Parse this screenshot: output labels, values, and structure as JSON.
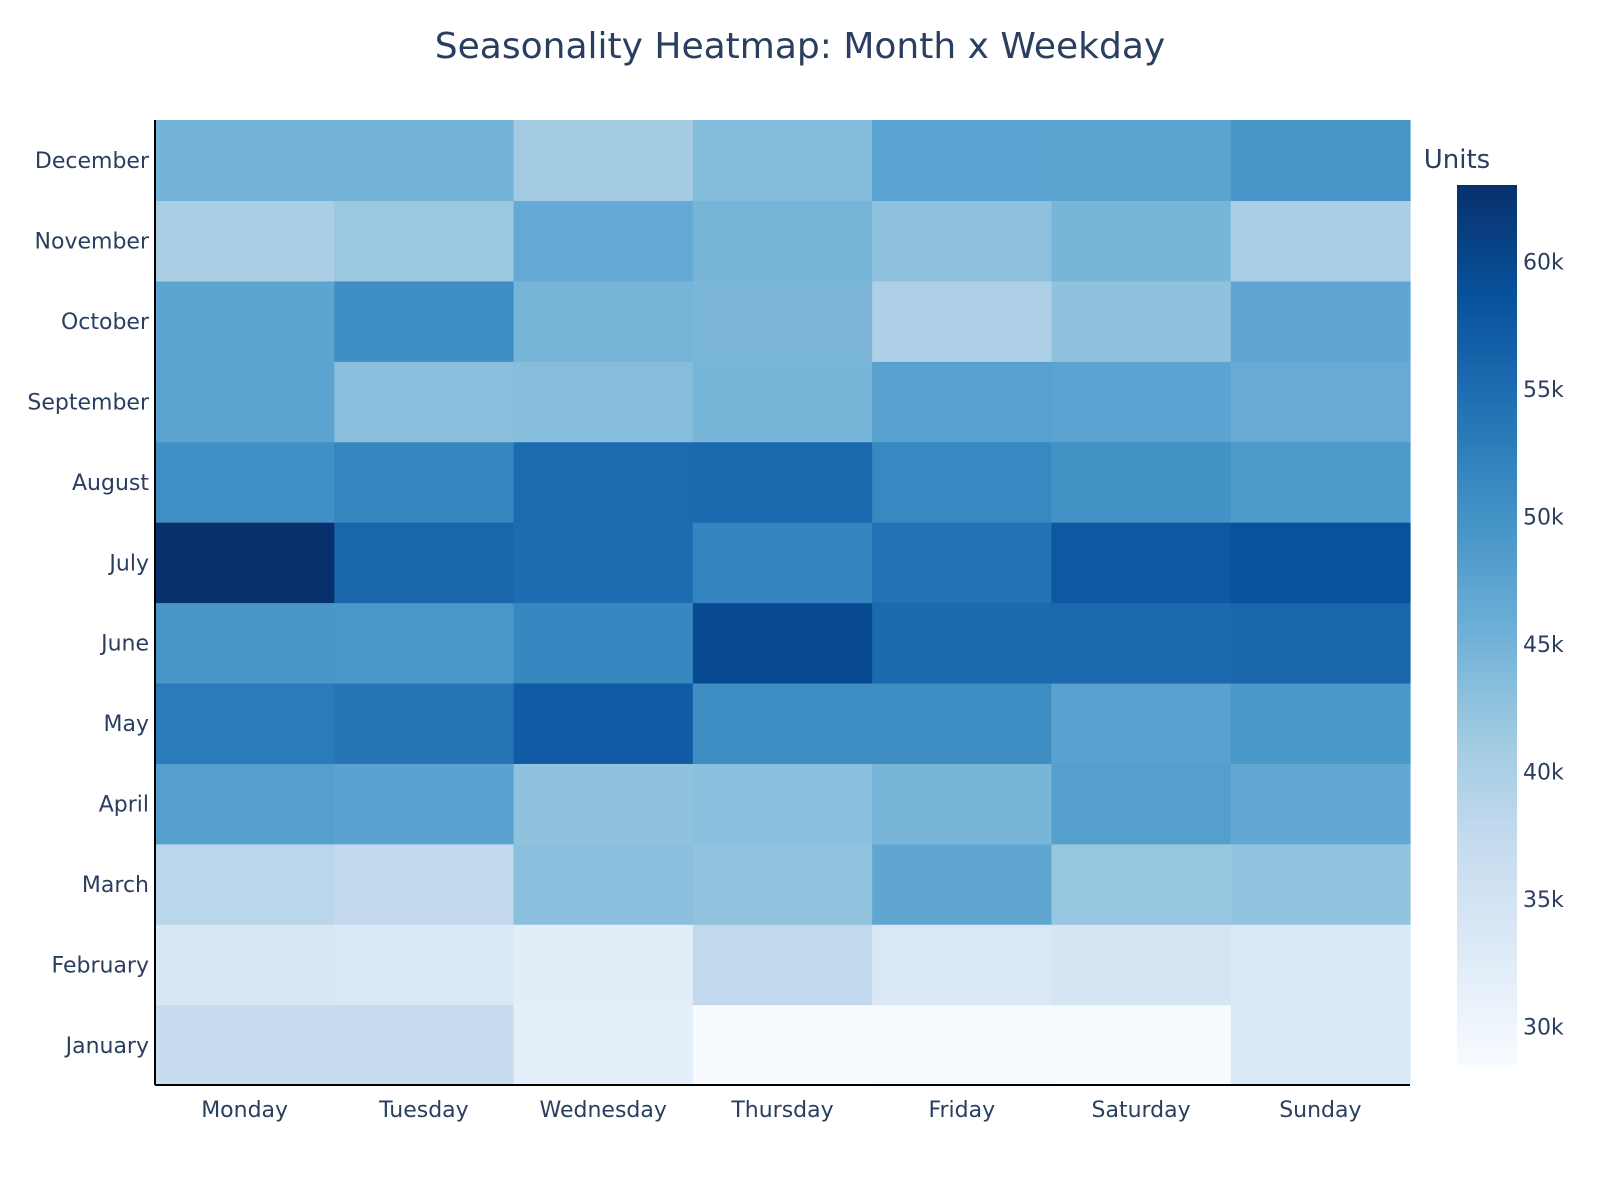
{
  "chart_data": {
    "type": "heatmap",
    "title": "Seasonality Heatmap: Month x Weekday",
    "x_categories": [
      "Monday",
      "Tuesday",
      "Wednesday",
      "Thursday",
      "Friday",
      "Saturday",
      "Sunday"
    ],
    "y_categories": [
      "January",
      "February",
      "March",
      "April",
      "May",
      "June",
      "July",
      "August",
      "September",
      "October",
      "November",
      "December"
    ],
    "values": [
      [
        36800,
        36800,
        31800,
        28500,
        28900,
        28600,
        33300
      ],
      [
        33800,
        33500,
        32200,
        37600,
        33600,
        34300,
        33300
      ],
      [
        38400,
        37500,
        43100,
        42500,
        47000,
        42000,
        42400
      ],
      [
        48100,
        47500,
        42600,
        43100,
        44600,
        48100,
        46700
      ],
      [
        53100,
        53900,
        57300,
        50600,
        50700,
        47600,
        49200
      ],
      [
        49300,
        49200,
        51500,
        59500,
        55400,
        55500,
        55800
      ],
      [
        62900,
        55800,
        55000,
        51900,
        54300,
        57700,
        58700
      ],
      [
        50300,
        51600,
        55200,
        55400,
        51400,
        50100,
        49000
      ],
      [
        47300,
        43200,
        43500,
        44700,
        47700,
        47400,
        46200
      ],
      [
        47200,
        50600,
        44800,
        44300,
        39800,
        42600,
        47000
      ],
      [
        40100,
        41800,
        46400,
        44800,
        42900,
        44600,
        40300
      ],
      [
        44900,
        44900,
        40900,
        43600,
        47400,
        47300,
        49300
      ]
    ],
    "colorbar": {
      "title": "Units",
      "min": 28500,
      "max": 63000,
      "ticks": [
        30000,
        35000,
        40000,
        45000,
        50000,
        55000,
        60000
      ],
      "tick_labels": [
        "30k",
        "35k",
        "40k",
        "45k",
        "50k",
        "55k",
        "60k"
      ]
    },
    "colorscale": [
      "#f7fbff",
      "#deebf7",
      "#c6dbef",
      "#9ecae1",
      "#6baed6",
      "#4292c6",
      "#2171b5",
      "#08519c",
      "#08306b"
    ],
    "text_color": "#2a3f5f",
    "grid": false
  }
}
